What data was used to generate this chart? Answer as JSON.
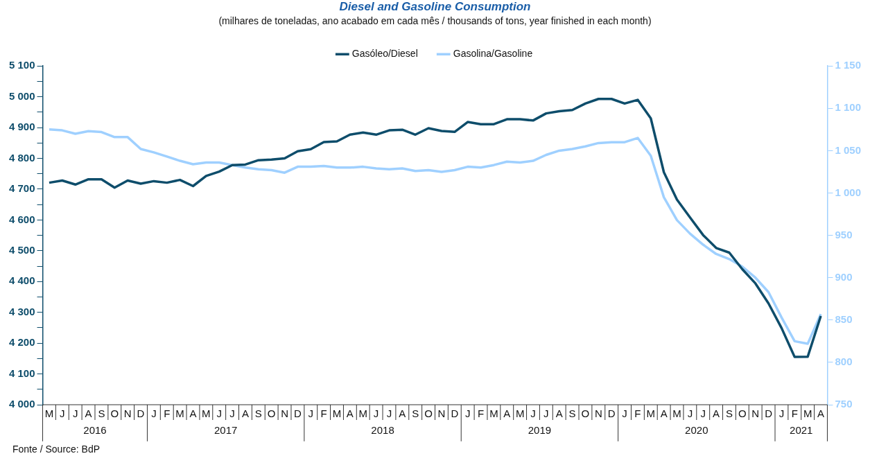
{
  "chart_data": {
    "type": "line",
    "title": "Diesel and Gasoline Consumption",
    "subtitle": "(milhares de toneladas, ano acabado em cada mês / thousands of tons, year finished in each month)",
    "categories": [
      "M",
      "J",
      "J",
      "A",
      "S",
      "O",
      "N",
      "D",
      "J",
      "F",
      "M",
      "A",
      "M",
      "J",
      "J",
      "A",
      "S",
      "O",
      "N",
      "D",
      "J",
      "F",
      "M",
      "A",
      "M",
      "J",
      "J",
      "A",
      "S",
      "O",
      "N",
      "D",
      "J",
      "F",
      "M",
      "A",
      "M",
      "J",
      "J",
      "A",
      "S",
      "O",
      "N",
      "D",
      "J",
      "F",
      "M",
      "A",
      "M",
      "J",
      "J",
      "A",
      "S",
      "O",
      "N",
      "D",
      "J",
      "F",
      "M",
      "A"
    ],
    "series": [
      {
        "name": "Gasóleo/Diesel",
        "color": "#0e4d6b",
        "values": [
          4721,
          4728,
          4715,
          4732,
          4732,
          4705,
          4728,
          4718,
          4726,
          4721,
          4730,
          4710,
          4743,
          4757,
          4778,
          4780,
          4794,
          4796,
          4800,
          4823,
          4830,
          4853,
          4855,
          4877,
          4884,
          4877,
          4891,
          4893,
          4877,
          4898,
          4889,
          4886,
          4918,
          4911,
          4911,
          4927,
          4927,
          4923,
          4946,
          4953,
          4957,
          4978,
          4993,
          4993,
          4978,
          4990,
          4930,
          4755,
          4666,
          4608,
          4551,
          4509,
          4494,
          4440,
          4394,
          4329,
          4249,
          4155,
          4156,
          4288
        ]
      },
      {
        "name": "Gasolina/Gasoline",
        "color": "#9fd0ff",
        "axis": "y2",
        "values": [
          1075,
          1074,
          1070,
          1073,
          1072,
          1066,
          1066,
          1052,
          1048,
          1043,
          1038,
          1034,
          1036,
          1036,
          1033,
          1030,
          1028,
          1027,
          1024,
          1031,
          1031,
          1032,
          1030,
          1030,
          1031,
          1029,
          1028,
          1029,
          1026,
          1027,
          1025,
          1027,
          1031,
          1030,
          1033,
          1037,
          1036,
          1038,
          1045,
          1050,
          1052,
          1055,
          1059,
          1060,
          1060,
          1065,
          1044,
          995,
          968,
          952,
          939,
          928,
          922,
          913,
          900,
          883,
          853,
          825,
          822,
          857
        ]
      }
    ],
    "ylim": [
      4000,
      5100
    ],
    "yticks": [
      {
        "value": 4000,
        "label": "4 000"
      },
      {
        "value": 4050,
        "label": null
      },
      {
        "value": 4100,
        "label": "4 100"
      },
      {
        "value": 4150,
        "label": null
      },
      {
        "value": 4200,
        "label": "4 200"
      },
      {
        "value": 4250,
        "label": null
      },
      {
        "value": 4300,
        "label": "4 300"
      },
      {
        "value": 4350,
        "label": null
      },
      {
        "value": 4400,
        "label": "4 400"
      },
      {
        "value": 4450,
        "label": null
      },
      {
        "value": 4500,
        "label": "4 500"
      },
      {
        "value": 4550,
        "label": null
      },
      {
        "value": 4600,
        "label": "4 600"
      },
      {
        "value": 4650,
        "label": null
      },
      {
        "value": 4700,
        "label": "4 700"
      },
      {
        "value": 4750,
        "label": null
      },
      {
        "value": 4800,
        "label": "4 800"
      },
      {
        "value": 4850,
        "label": null
      },
      {
        "value": 4900,
        "label": "4 900"
      },
      {
        "value": 4950,
        "label": null
      },
      {
        "value": 5000,
        "label": "5 000"
      },
      {
        "value": 5050,
        "label": null
      },
      {
        "value": 5100,
        "label": "5 100"
      }
    ],
    "y2lim": [
      750,
      1150
    ],
    "y2ticks": [
      750,
      800,
      850,
      900,
      950,
      {
        "value": 1000,
        "label": "1 000"
      },
      {
        "value": 1050,
        "label": "1 050"
      },
      {
        "value": 1100,
        "label": "1 100"
      },
      {
        "value": 1150,
        "label": "1 150"
      }
    ],
    "legend": "top",
    "grid": false,
    "marker": "none",
    "line_style": "solid",
    "annotations": [
      "2016",
      "2017",
      "2018",
      "2019",
      "2020",
      "2021",
      "Fonte / Source: BdP"
    ]
  }
}
